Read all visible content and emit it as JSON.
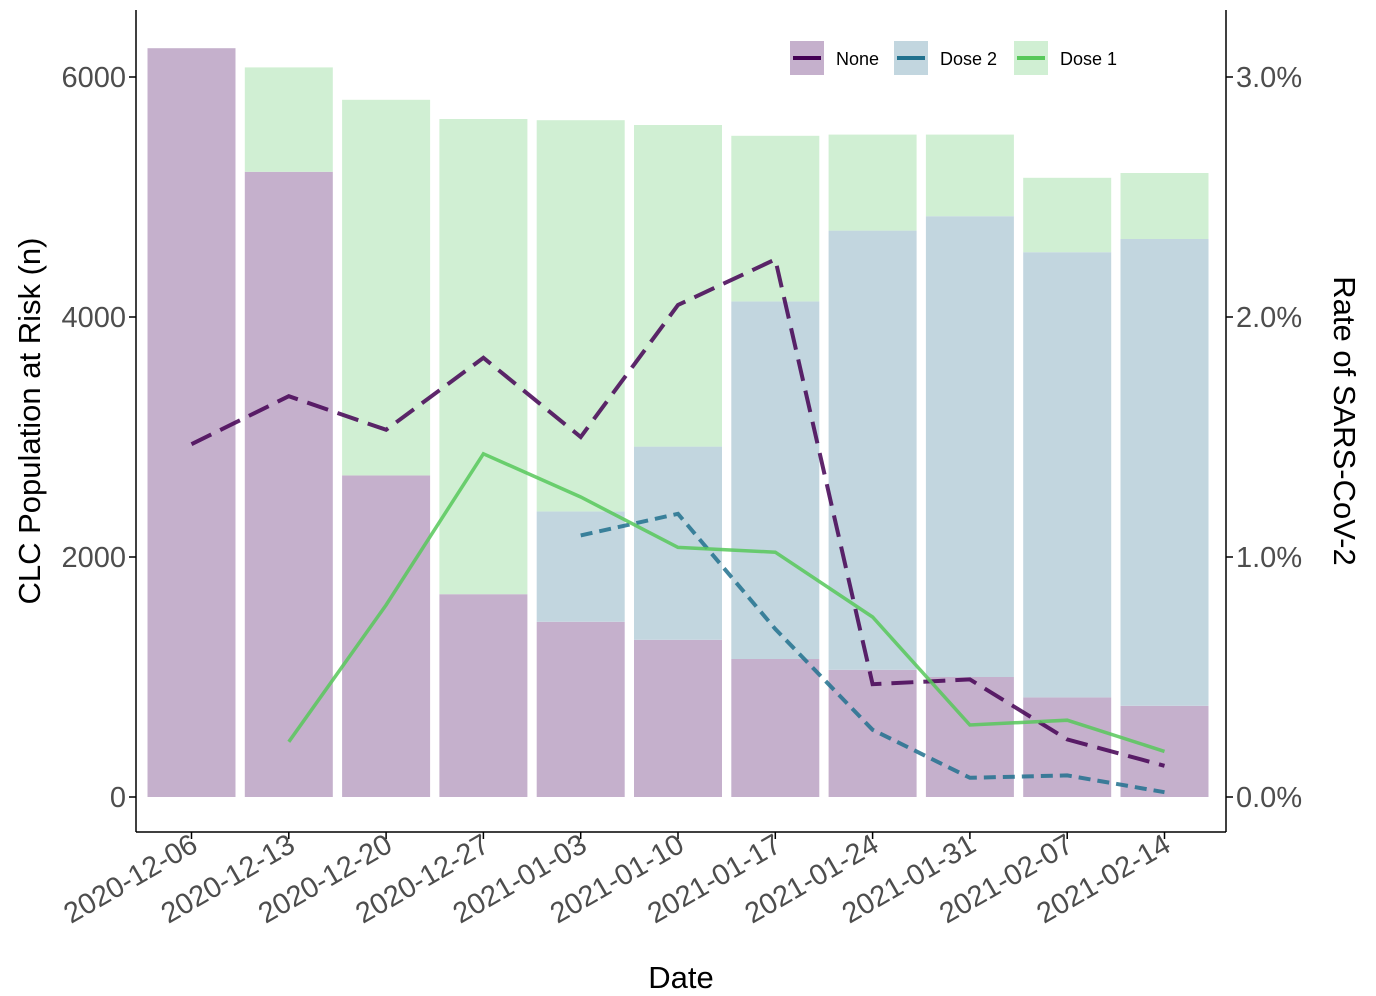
{
  "chart_data": {
    "type": "bar",
    "title": "",
    "xlabel": "Date",
    "ylabel": "CLC Population at Risk (n)",
    "y2label": "Rate of SARS-CoV-2",
    "ylim": [
      0,
      6500
    ],
    "y2lim": [
      0,
      3.25
    ],
    "yticks": [
      "0",
      "2000",
      "4000",
      "6000"
    ],
    "y2ticks": [
      "0.0%",
      "1.0%",
      "2.0%",
      "3.0%"
    ],
    "grid": false,
    "legend_position": "top-right",
    "categories": [
      "2020-12-06",
      "2020-12-13",
      "2020-12-20",
      "2020-12-27",
      "2021-01-03",
      "2021-01-10",
      "2021-01-17",
      "2021-01-24",
      "2021-01-31",
      "2021-02-07",
      "2021-02-14"
    ],
    "bar_series": [
      {
        "name": "None",
        "color": "#c5b0cc",
        "values": [
          6240,
          5210,
          2680,
          1690,
          1460,
          1310,
          1150,
          1060,
          1000,
          830,
          760
        ]
      },
      {
        "name": "Dose 2",
        "color": "#c2d6df",
        "values": [
          0,
          0,
          0,
          0,
          920,
          1610,
          2980,
          3660,
          3840,
          3710,
          3890
        ]
      },
      {
        "name": "Dose 1",
        "color": "#d0efd3",
        "values": [
          0,
          870,
          3130,
          3960,
          3260,
          2680,
          1380,
          800,
          680,
          620,
          550
        ]
      }
    ],
    "line_series": [
      {
        "name": "None",
        "color": "#440154",
        "dash": "dashed",
        "values": [
          1.47,
          1.67,
          1.53,
          1.83,
          1.5,
          2.05,
          2.24,
          0.47,
          0.49,
          0.24,
          0.13
        ]
      },
      {
        "name": "Dose 2",
        "color": "#21718e",
        "dash": "dotted",
        "values": [
          null,
          null,
          null,
          null,
          1.09,
          1.18,
          0.7,
          0.28,
          0.08,
          0.09,
          0.02
        ]
      },
      {
        "name": "Dose 1",
        "color": "#57c85a",
        "dash": "solid",
        "values": [
          null,
          0.23,
          0.8,
          1.43,
          1.25,
          1.04,
          1.02,
          0.75,
          0.3,
          0.32,
          0.19
        ]
      }
    ],
    "legend": [
      {
        "name": "None",
        "color": "#440154",
        "fill": "#c5b0cc"
      },
      {
        "name": "Dose 2",
        "color": "#21718e",
        "fill": "#c2d6df"
      },
      {
        "name": "Dose 1",
        "color": "#57c85a",
        "fill": "#d0efd3"
      }
    ]
  }
}
